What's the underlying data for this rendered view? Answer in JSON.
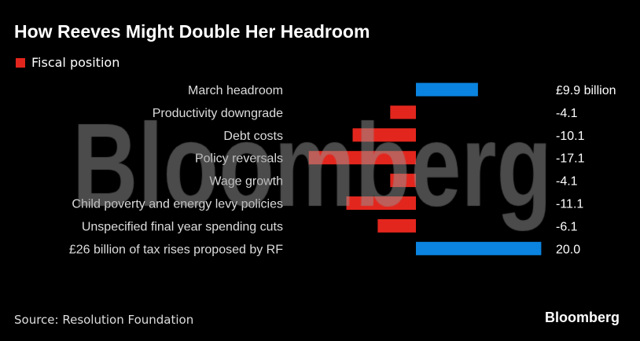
{
  "title": "How Reeves Might Double Her Headroom",
  "legend": "Fiscal position",
  "source": "Source: Resolution Foundation",
  "logo": "Bloomberg",
  "watermark": "Bloomberg",
  "colors": {
    "positive": "#0a84e0",
    "negative": "#e3261d"
  },
  "chart_data": {
    "type": "bar",
    "orientation": "horizontal",
    "title": "How Reeves Might Double Her Headroom",
    "categories": [
      "March headroom",
      "Productivity downgrade",
      "Debt costs",
      "Policy reversals",
      "Wage growth",
      "Child poverty and energy levy policies",
      "Unspecified final year spending cuts",
      "£26 billion of tax rises proposed by RF"
    ],
    "series": [
      {
        "name": "Fiscal position",
        "values": [
          9.9,
          -4.1,
          -10.1,
          -17.1,
          -4.1,
          -11.1,
          -6.1,
          20.0
        ]
      }
    ],
    "data_labels": [
      "£9.9 billion",
      "-4.1",
      "-10.1",
      "-17.1",
      "-4.1",
      "-11.1",
      "-6.1",
      "20.0"
    ],
    "grid": false,
    "legend": "top-left"
  }
}
